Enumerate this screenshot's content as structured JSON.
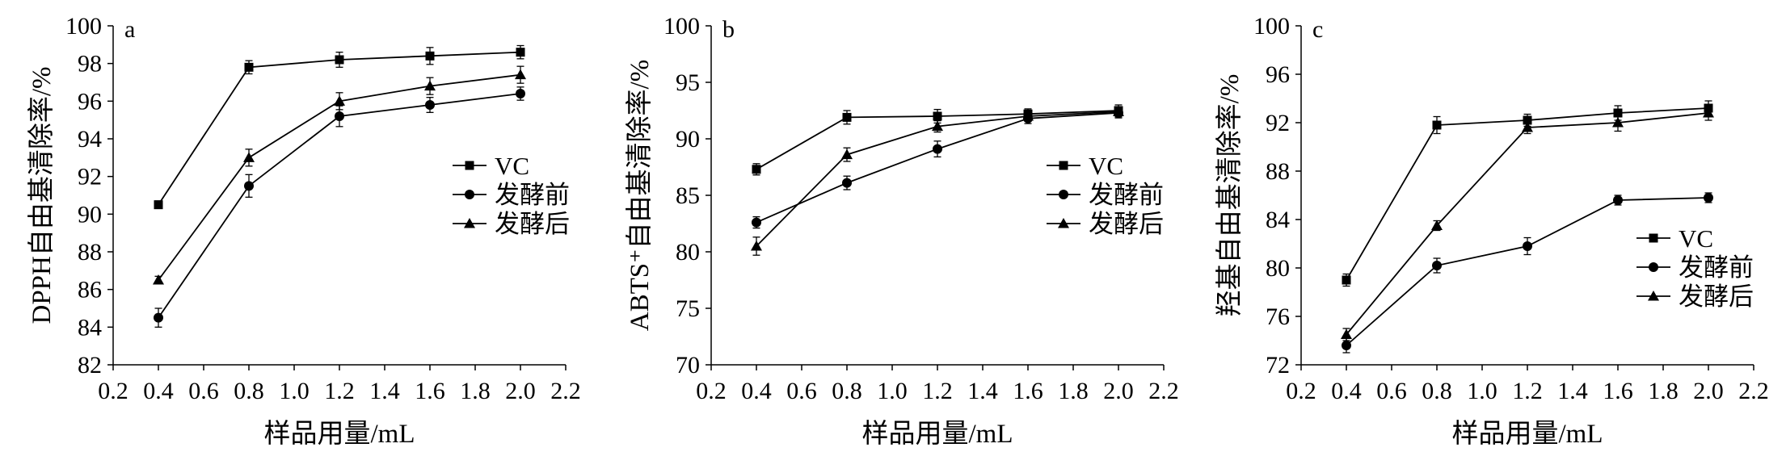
{
  "colors": {
    "ink": "#000000",
    "background": "#ffffff"
  },
  "chart_data": [
    {
      "type": "line",
      "panel_label": "a",
      "xlabel": "样品用量/mL",
      "ylabel": "DPPH自由基清除率/%",
      "xlim": [
        0.2,
        2.2
      ],
      "ylim": [
        82,
        100
      ],
      "xticks": [
        0.2,
        0.4,
        0.6,
        0.8,
        1.0,
        1.2,
        1.4,
        1.6,
        1.8,
        2.0,
        2.2
      ],
      "yticks": [
        82,
        84,
        86,
        88,
        90,
        92,
        94,
        96,
        98,
        100
      ],
      "grid": false,
      "legend_position": "right-middle",
      "x": [
        0.4,
        0.8,
        1.2,
        1.6,
        2.0
      ],
      "series": [
        {
          "name": "VC",
          "marker": "square",
          "values": [
            90.5,
            97.8,
            98.2,
            98.4,
            98.6
          ],
          "errors": [
            0.2,
            0.35,
            0.4,
            0.45,
            0.35
          ]
        },
        {
          "name": "发酵前",
          "marker": "circle",
          "values": [
            84.5,
            91.5,
            95.2,
            95.8,
            96.4
          ],
          "errors": [
            0.5,
            0.6,
            0.55,
            0.4,
            0.35
          ]
        },
        {
          "name": "发酵后",
          "marker": "triangle",
          "values": [
            86.5,
            93.0,
            96.0,
            96.8,
            97.4
          ],
          "errors": [
            0.2,
            0.45,
            0.45,
            0.45,
            0.45
          ]
        }
      ]
    },
    {
      "type": "line",
      "panel_label": "b",
      "xlabel": "样品用量/mL",
      "ylabel": "ABTS⁺自由基清除率/%",
      "xlim": [
        0.2,
        2.2
      ],
      "ylim": [
        70,
        100
      ],
      "xticks": [
        0.2,
        0.4,
        0.6,
        0.8,
        1.0,
        1.2,
        1.4,
        1.6,
        1.8,
        2.0,
        2.2
      ],
      "yticks": [
        70,
        75,
        80,
        85,
        90,
        95,
        100
      ],
      "grid": false,
      "legend_position": "right-middle",
      "x": [
        0.4,
        0.8,
        1.2,
        1.6,
        2.0
      ],
      "series": [
        {
          "name": "VC",
          "marker": "square",
          "values": [
            87.3,
            91.9,
            92.0,
            92.2,
            92.5
          ],
          "errors": [
            0.5,
            0.6,
            0.6,
            0.45,
            0.5
          ]
        },
        {
          "name": "发酵前",
          "marker": "circle",
          "values": [
            82.6,
            86.1,
            89.1,
            91.8,
            92.3
          ],
          "errors": [
            0.5,
            0.6,
            0.7,
            0.45,
            0.45
          ]
        },
        {
          "name": "发酵后",
          "marker": "triangle",
          "values": [
            80.5,
            88.6,
            91.1,
            92.0,
            92.4
          ],
          "errors": [
            0.8,
            0.6,
            0.5,
            0.45,
            0.45
          ]
        }
      ]
    },
    {
      "type": "line",
      "panel_label": "c",
      "xlabel": "样品用量/mL",
      "ylabel": "羟基自由基清除率/%",
      "xlim": [
        0.2,
        2.2
      ],
      "ylim": [
        72,
        100
      ],
      "xticks": [
        0.2,
        0.4,
        0.6,
        0.8,
        1.0,
        1.2,
        1.4,
        1.6,
        1.8,
        2.0,
        2.2
      ],
      "yticks": [
        72,
        76,
        80,
        84,
        88,
        92,
        96,
        100
      ],
      "grid": false,
      "legend_position": "right-lower",
      "x": [
        0.4,
        0.8,
        1.2,
        1.6,
        2.0
      ],
      "series": [
        {
          "name": "VC",
          "marker": "square",
          "values": [
            79.0,
            91.8,
            92.2,
            92.8,
            93.2
          ],
          "errors": [
            0.5,
            0.7,
            0.5,
            0.6,
            0.6
          ]
        },
        {
          "name": "发酵前",
          "marker": "circle",
          "values": [
            73.6,
            80.2,
            81.8,
            85.6,
            85.8
          ],
          "errors": [
            0.6,
            0.6,
            0.7,
            0.4,
            0.4
          ]
        },
        {
          "name": "发酵后",
          "marker": "triangle",
          "values": [
            74.5,
            83.5,
            91.6,
            92.0,
            92.8
          ],
          "errors": [
            0.5,
            0.4,
            0.5,
            0.7,
            0.6
          ]
        }
      ]
    }
  ]
}
